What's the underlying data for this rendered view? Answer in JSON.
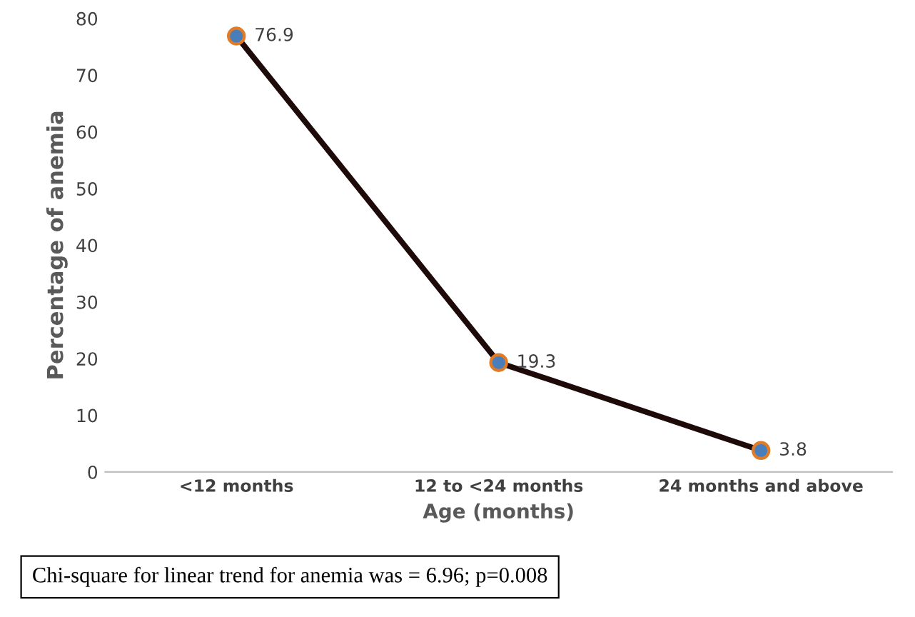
{
  "chart_data": {
    "type": "line",
    "xlabel": "Age (months)",
    "ylabel": "Percentage of anemia",
    "categories": [
      "<12 months",
      "12 to <24 months",
      "24 months and above"
    ],
    "series": [
      {
        "color": "#1f0a0a",
        "values": [
          76.9,
          19.3,
          3.8
        ]
      }
    ],
    "marker": "circle",
    "line_style": "solid",
    "data_labels": true,
    "ylim": [
      0,
      80
    ],
    "yticks": [
      0,
      10,
      20,
      30,
      40,
      50,
      60,
      70,
      80
    ],
    "grid": false,
    "legend": false,
    "annotations": [
      "Chi-square for linear trend for anemia was = 6.96; p=0.008"
    ]
  }
}
